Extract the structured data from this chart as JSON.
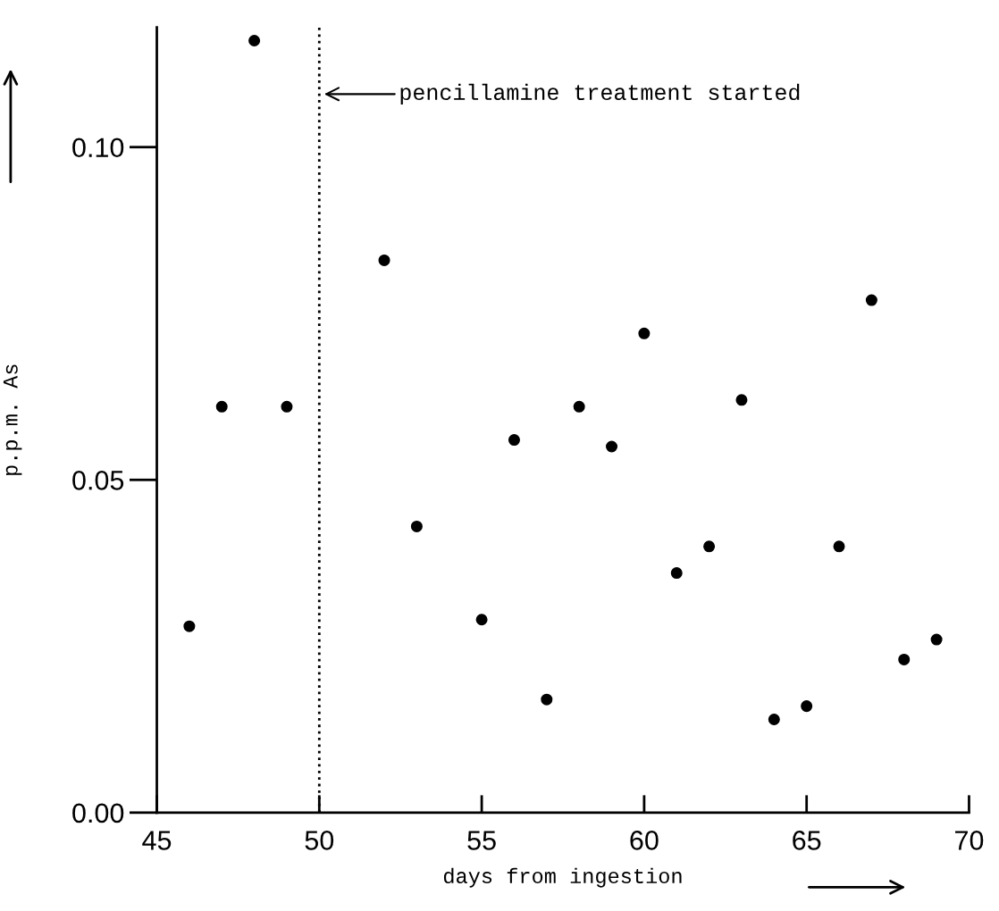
{
  "chart_data": {
    "type": "scatter",
    "xlabel": "days from ingestion",
    "ylabel": "p.p.m. As",
    "x": [
      46,
      47,
      48,
      49,
      52,
      53,
      55,
      56,
      57,
      58,
      59,
      60,
      61,
      62,
      63,
      64,
      65,
      66,
      67,
      68,
      69
    ],
    "values": [
      0.028,
      0.061,
      0.116,
      0.061,
      0.083,
      0.043,
      0.029,
      0.056,
      0.017,
      0.061,
      0.055,
      0.072,
      0.036,
      0.04,
      0.062,
      0.014,
      0.016,
      0.04,
      0.077,
      0.023,
      0.026
    ],
    "color": "#000000",
    "marker": "circle",
    "grid": false,
    "legend": false,
    "xlim": [
      45,
      70
    ],
    "ylim": [
      0,
      0.118
    ],
    "xticks": [
      45,
      50,
      55,
      60,
      65,
      70
    ],
    "yticks": [
      {
        "value": 0,
        "label": "0.00"
      },
      {
        "value": 0.05,
        "label": "0.05"
      },
      {
        "value": 0.1,
        "label": "0.10"
      }
    ],
    "ref_lines": [
      {
        "axis": "x",
        "value": 50,
        "line_style": "dotted",
        "color": "#000000"
      }
    ],
    "annotations": [
      "pencillamine treatment started"
    ]
  }
}
